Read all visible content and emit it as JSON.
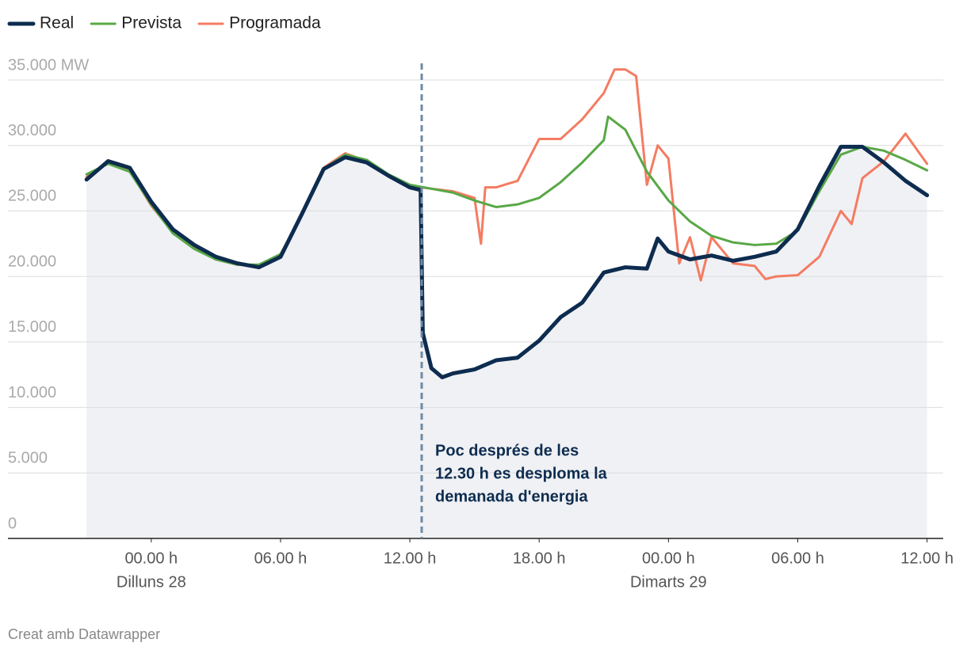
{
  "chart_data": {
    "type": "line",
    "xlim": [
      -6.65,
      36.75
    ],
    "ylim": [
      0,
      35000
    ],
    "yticks": [
      0,
      {
        "value": 5000,
        "label": "5.000"
      },
      {
        "value": 10000,
        "label": "10.000"
      },
      {
        "value": 15000,
        "label": "15.000"
      },
      {
        "value": 20000,
        "label": "20.000"
      },
      {
        "value": 25000,
        "label": "25.000"
      },
      {
        "value": 30000,
        "label": "30.000"
      },
      {
        "value": 35000,
        "label": "35.000 MW"
      }
    ],
    "xticks": [
      {
        "value": 0,
        "label": "00.00 h"
      },
      {
        "value": 6,
        "label": "06.00 h"
      },
      {
        "value": 12,
        "label": "12.00 h"
      },
      {
        "value": 18,
        "label": "18.00 h"
      },
      {
        "value": 24,
        "label": "00.00 h"
      },
      {
        "value": 30,
        "label": "06.00 h"
      },
      {
        "value": 36,
        "label": "12.00 h"
      }
    ],
    "x_groups": [
      {
        "value": 0,
        "label": "Dilluns 28"
      },
      {
        "value": 24,
        "label": "Dimarts 29"
      }
    ],
    "grid": true,
    "series": [
      {
        "name": "Real",
        "color": "#0d2c4f",
        "x": [
          -3,
          -2,
          -1,
          0,
          1,
          2,
          3,
          4,
          5,
          6,
          7,
          8,
          9,
          10,
          11,
          12,
          12.5,
          12.6,
          13,
          13.5,
          14,
          15,
          16,
          17,
          18,
          19,
          20,
          21,
          22,
          23,
          23.5,
          24,
          25,
          26,
          27,
          28,
          29,
          30,
          31,
          32,
          33,
          34,
          35,
          36
        ],
        "values": [
          27400,
          28800,
          28300,
          25700,
          23600,
          22400,
          21500,
          21000,
          20700,
          21500,
          24800,
          28200,
          29100,
          28700,
          27700,
          26800,
          26600,
          15700,
          13000,
          12300,
          12600,
          12900,
          13600,
          13800,
          15100,
          16900,
          18000,
          20300,
          20700,
          20600,
          22900,
          21900,
          21300,
          21600,
          21200,
          21500,
          21900,
          23600,
          26900,
          29900,
          29900,
          28700,
          27300,
          26200
        ]
      },
      {
        "name": "Prevista",
        "color": "#58a846",
        "x": [
          -3,
          -2,
          -1,
          0,
          1,
          2,
          3,
          4,
          5,
          6,
          7,
          8,
          9,
          10,
          11,
          12,
          13,
          14,
          15,
          16,
          17,
          18,
          19,
          20,
          21,
          21.2,
          22,
          23,
          24,
          25,
          26,
          27,
          28,
          29,
          30,
          31,
          32,
          33,
          34,
          35,
          36
        ],
        "values": [
          27800,
          28600,
          28000,
          25500,
          23300,
          22100,
          21300,
          20900,
          20900,
          21700,
          24700,
          28200,
          29300,
          28900,
          27800,
          27000,
          26700,
          26400,
          25800,
          25300,
          25500,
          26000,
          27200,
          28700,
          30400,
          32200,
          31200,
          28000,
          25800,
          24200,
          23100,
          22600,
          22400,
          22500,
          23500,
          26500,
          29300,
          29900,
          29600,
          28900,
          28100
        ]
      },
      {
        "name": "Programada",
        "color": "#f47c62",
        "x": [
          -3,
          -2,
          -1,
          0,
          1,
          2,
          3,
          4,
          5,
          6,
          7,
          8,
          9,
          10,
          11,
          12,
          13,
          14,
          15,
          15.3,
          15.5,
          16,
          17,
          18,
          19,
          20,
          21,
          21.5,
          22,
          22.5,
          23,
          23.5,
          24,
          24.5,
          25,
          25.5,
          26,
          27,
          28,
          28.5,
          29,
          30,
          31,
          32,
          32.5,
          33,
          34,
          35,
          36
        ],
        "values": [
          27600,
          28700,
          28100,
          25400,
          23400,
          22200,
          21300,
          20900,
          20800,
          21600,
          24800,
          28300,
          29400,
          28800,
          27700,
          26900,
          26700,
          26500,
          26000,
          22500,
          26800,
          26800,
          27300,
          30500,
          30500,
          32000,
          34000,
          35800,
          35800,
          35300,
          27000,
          30000,
          29000,
          21000,
          23000,
          19700,
          23000,
          21000,
          20800,
          19800,
          20000,
          20100,
          21500,
          25000,
          24000,
          27500,
          28800,
          30900,
          28600
        ]
      }
    ],
    "annotation": {
      "x": 12.55,
      "lines": [
        "Poc després de les",
        "12.30 h es desploma la",
        "demanada d'energia"
      ]
    },
    "footer": "Creat amb Datawrapper"
  }
}
